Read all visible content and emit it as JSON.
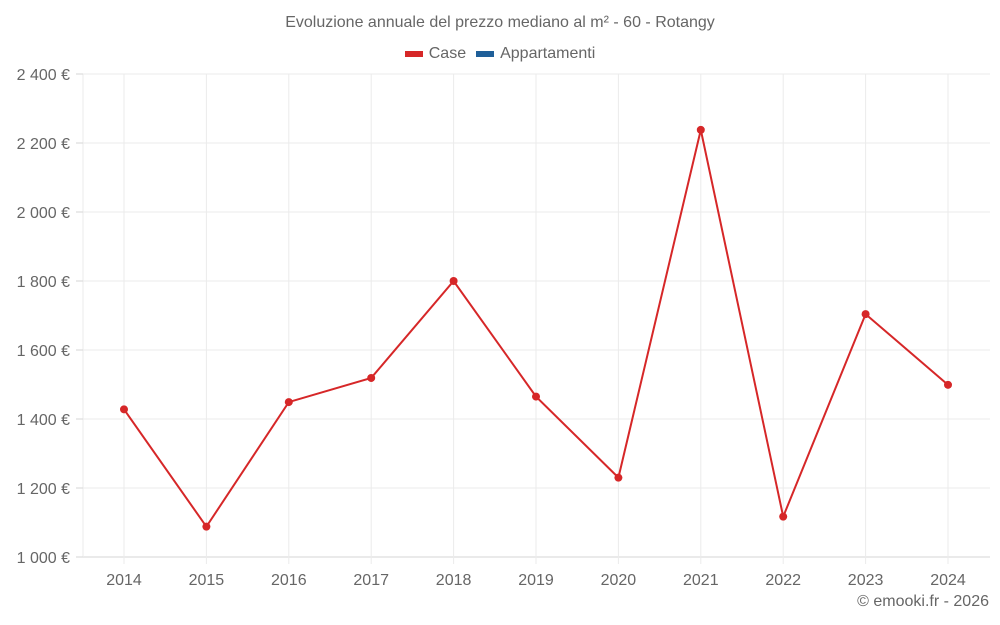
{
  "chart_data": {
    "type": "line",
    "title": "Evoluzione annuale del prezzo mediano al m² - 60 - Rotangy",
    "xlabel": "",
    "ylabel": "",
    "categories": [
      "2014",
      "2015",
      "2016",
      "2017",
      "2018",
      "2019",
      "2020",
      "2021",
      "2022",
      "2023",
      "2024"
    ],
    "series": [
      {
        "name": "Case",
        "color": "#d62728",
        "values": [
          1428,
          1088,
          1449,
          1519,
          1800,
          1465,
          1230,
          2238,
          1117,
          1704,
          1499
        ]
      },
      {
        "name": "Appartamenti",
        "color": "#1f5f99",
        "values": []
      }
    ],
    "ylim": [
      1000,
      2400
    ],
    "yticks": [
      1000,
      1200,
      1400,
      1600,
      1800,
      2000,
      2200,
      2400
    ],
    "ytick_labels": [
      "1 000 €",
      "1 200 €",
      "1 400 €",
      "1 600 €",
      "1 800 €",
      "2 000 €",
      "2 200 €",
      "2 400 €"
    ],
    "grid": true,
    "legend_position": "top"
  },
  "legend": {
    "items": [
      {
        "label": "Case",
        "color": "#d62728"
      },
      {
        "label": "Appartamenti",
        "color": "#1f5f99"
      }
    ]
  },
  "footer": {
    "text": "© emooki.fr - 2026"
  }
}
